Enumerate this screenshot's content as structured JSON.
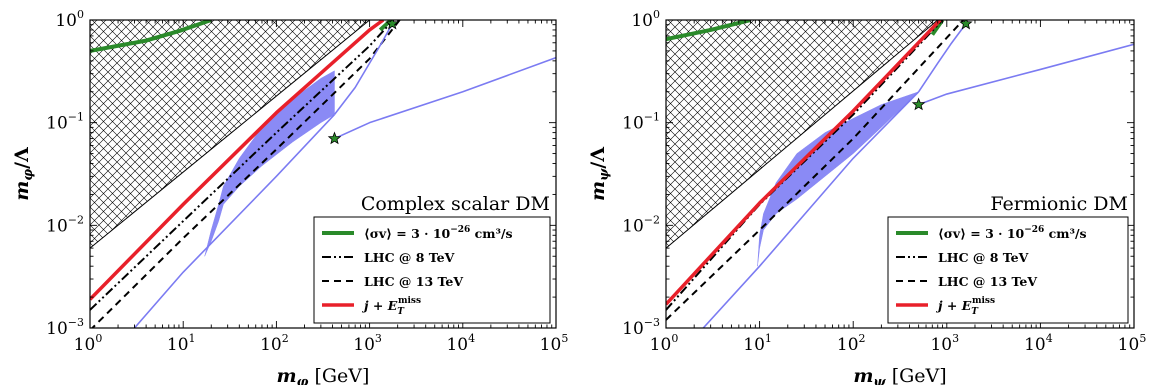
{
  "chart_data": [
    {
      "type": "line",
      "panel": "left",
      "annotation": "Complex scalar DM",
      "xlabel": "m_φ [GeV]",
      "xlabel_main": "m",
      "xlabel_sub": "φ",
      "xlabel_unit": " [GeV]",
      "ylabel_main": "m",
      "ylabel_sub": "φ",
      "ylabel_tail": "/Λ",
      "xscale": "log",
      "yscale": "log",
      "xlim": [
        1,
        100000
      ],
      "ylim": [
        0.001,
        1
      ],
      "xticks": [
        "10",
        "10",
        "10",
        "10",
        "10",
        "10"
      ],
      "xtick_exponents": [
        "0",
        "1",
        "2",
        "3",
        "4",
        "5"
      ],
      "yticks": [
        "10",
        "10",
        "10",
        "10"
      ],
      "ytick_exponents": [
        "−3",
        "−2",
        "−1",
        "0"
      ],
      "legend_position": "lower-right",
      "legend": [
        {
          "label_prefix": "⟨σv⟩ = 3 · 10",
          "label_exp": "−26",
          "label_suffix": " cm³/s",
          "color": "#2a8a2a",
          "style": "solid"
        },
        {
          "label": "LHC @ 8 TeV",
          "color": "#000000",
          "style": "dashdotdot"
        },
        {
          "label": "LHC @ 13 TeV",
          "color": "#000000",
          "style": "dashed"
        },
        {
          "label_prefix": "j + E",
          "label_sub": "T",
          "label_sup": "miss",
          "color": "#e8202a",
          "style": "solid"
        }
      ],
      "hatched_region": {
        "x": [
          1,
          1,
          1000
        ],
        "y": [
          0.006,
          1,
          1
        ]
      },
      "relic_band": {
        "x": [
          17,
          20,
          24,
          27,
          40,
          70,
          150,
          300,
          420
        ],
        "y_low": [
          0.005,
          0.007,
          0.011,
          0.016,
          0.024,
          0.038,
          0.065,
          0.1,
          0.12
        ],
        "y_high": [
          0.005,
          0.009,
          0.016,
          0.024,
          0.045,
          0.09,
          0.17,
          0.27,
          0.32
        ]
      },
      "series": [
        {
          "key": "relic_left",
          "color": "#2a8a2a",
          "x": [
            1,
            4,
            9,
            20
          ],
          "y": [
            0.5,
            0.63,
            0.78,
            1.0
          ]
        },
        {
          "key": "relic_right",
          "color": "#2a8a2a",
          "x": [
            1300,
            1500,
            1700
          ],
          "y": [
            0.8,
            0.9,
            1.0
          ]
        },
        {
          "key": "lhc8",
          "color": "#000000",
          "x": [
            1,
            10,
            100,
            1000,
            1800
          ],
          "y": [
            0.0015,
            0.011,
            0.08,
            0.56,
            1.0
          ]
        },
        {
          "key": "lhc13",
          "color": "#000000",
          "x": [
            1,
            10,
            100,
            1000,
            2100
          ],
          "y": [
            0.00095,
            0.0075,
            0.055,
            0.42,
            1.0
          ]
        },
        {
          "key": "monojet",
          "color": "#e8202a",
          "x": [
            1,
            10,
            100,
            1000,
            1400
          ],
          "y": [
            0.0019,
            0.016,
            0.125,
            0.8,
            1.0
          ]
        },
        {
          "key": "blue_lower",
          "color": "#7b7bf2",
          "x": [
            3,
            10,
            100,
            420
          ],
          "y": [
            0.001,
            0.0035,
            0.03,
            0.12
          ]
        },
        {
          "key": "blue_upper",
          "color": "#7b7bf2",
          "x": [
            420,
            700,
            1000,
            1350,
            1750
          ],
          "y": [
            0.12,
            0.22,
            0.38,
            0.6,
            0.92
          ]
        },
        {
          "key": "blue_threshold",
          "color": "#7b7bf2",
          "x": [
            420,
            1000,
            10000,
            100000
          ],
          "y": [
            0.07,
            0.1,
            0.2,
            0.43
          ]
        }
      ],
      "stars": [
        {
          "x": 420,
          "y": 0.07
        },
        {
          "x": 1750,
          "y": 0.92
        }
      ]
    },
    {
      "type": "line",
      "panel": "right",
      "annotation": "Fermionic DM",
      "xlabel": "m_ψ [GeV]",
      "xlabel_main": "m",
      "xlabel_sub": "ψ",
      "xlabel_unit": " [GeV]",
      "ylabel_main": "m",
      "ylabel_sub": "ψ",
      "ylabel_tail": "/Λ",
      "xscale": "log",
      "yscale": "log",
      "xlim": [
        1,
        100000
      ],
      "ylim": [
        0.001,
        1
      ],
      "xticks": [
        "10",
        "10",
        "10",
        "10",
        "10",
        "10"
      ],
      "xtick_exponents": [
        "0",
        "1",
        "2",
        "3",
        "4",
        "5"
      ],
      "yticks": [
        "10",
        "10",
        "10",
        "10"
      ],
      "ytick_exponents": [
        "−3",
        "−2",
        "−1",
        "0"
      ],
      "legend_position": "lower-right",
      "legend": [
        {
          "label_prefix": "⟨σv⟩ = 3 · 10",
          "label_exp": "−26",
          "label_suffix": " cm³/s",
          "color": "#2a8a2a",
          "style": "solid"
        },
        {
          "label": "LHC @ 8 TeV",
          "color": "#000000",
          "style": "dashdotdot"
        },
        {
          "label": "LHC @ 13 TeV",
          "color": "#000000",
          "style": "dashed"
        },
        {
          "label_prefix": "j + E",
          "label_sub": "T",
          "label_sup": "miss",
          "color": "#e8202a",
          "style": "solid"
        }
      ],
      "hatched_region": {
        "x": [
          1,
          1,
          800
        ],
        "y": [
          0.006,
          1,
          1
        ]
      },
      "relic_band": {
        "x": [
          9.5,
          10,
          11,
          15,
          25,
          50,
          100,
          200,
          500
        ],
        "y_low": [
          0.004,
          0.006,
          0.009,
          0.013,
          0.018,
          0.03,
          0.05,
          0.09,
          0.2
        ],
        "y_high": [
          0.004,
          0.008,
          0.013,
          0.026,
          0.05,
          0.08,
          0.11,
          0.15,
          0.2
        ]
      },
      "series": [
        {
          "key": "relic_left",
          "color": "#2a8a2a",
          "x": [
            1,
            3,
            8
          ],
          "y": [
            0.65,
            0.8,
            1.0
          ]
        },
        {
          "key": "relic_right",
          "color": "#2a8a2a",
          "x": [
            700,
            900
          ],
          "y": [
            0.72,
            1.0
          ]
        },
        {
          "key": "lhc8",
          "color": "#000000",
          "x": [
            1,
            10,
            100,
            900
          ],
          "y": [
            0.0015,
            0.016,
            0.12,
            1.0
          ]
        },
        {
          "key": "lhc13",
          "color": "#000000",
          "x": [
            1,
            10,
            100,
            1500
          ],
          "y": [
            0.0012,
            0.009,
            0.07,
            1.0
          ]
        },
        {
          "key": "monojet",
          "color": "#e8202a",
          "x": [
            1,
            10,
            100,
            850
          ],
          "y": [
            0.0017,
            0.0165,
            0.13,
            1.0
          ]
        },
        {
          "key": "blue_lower",
          "color": "#7b7bf2",
          "x": [
            2.5,
            10,
            100,
            500
          ],
          "y": [
            0.001,
            0.004,
            0.045,
            0.2
          ]
        },
        {
          "key": "blue_upper",
          "color": "#7b7bf2",
          "x": [
            500,
            800,
            1100,
            1600
          ],
          "y": [
            0.2,
            0.38,
            0.58,
            0.92
          ]
        },
        {
          "key": "blue_threshold",
          "color": "#7b7bf2",
          "x": [
            500,
            1000,
            10000,
            100000
          ],
          "y": [
            0.15,
            0.19,
            0.33,
            0.58
          ]
        }
      ],
      "stars": [
        {
          "x": 500,
          "y": 0.15
        },
        {
          "x": 1600,
          "y": 0.92
        }
      ]
    }
  ]
}
